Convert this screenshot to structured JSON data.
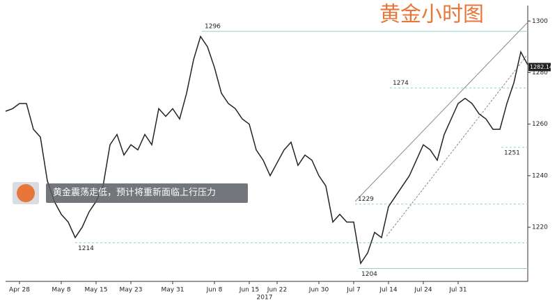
{
  "chart_data": {
    "type": "line",
    "title": "黄金小时图",
    "annotation": "黄金震荡走低，预计将重新面临上行压力",
    "x_axis_label": "2017",
    "categories": [
      null,
      null,
      "Apr 28",
      null,
      null,
      null,
      null,
      null,
      "May 8",
      null,
      null,
      null,
      null,
      "May 15",
      null,
      null,
      null,
      null,
      "May 23",
      null,
      null,
      null,
      null,
      null,
      "May 31",
      null,
      null,
      null,
      null,
      null,
      "Jun 8",
      null,
      null,
      null,
      null,
      "Jun 15",
      null,
      null,
      null,
      "Jun 22",
      null,
      null,
      null,
      null,
      null,
      "Jun 30",
      null,
      null,
      null,
      null,
      "Jul 7",
      null,
      null,
      null,
      null,
      "Jul 14",
      null,
      null,
      null,
      null,
      "Jul 24",
      null,
      null,
      null,
      null,
      "Jul 31",
      null,
      null,
      null,
      null,
      null,
      null,
      null,
      null,
      null,
      null
    ],
    "series": [
      {
        "name": "Gold",
        "color": "#222222",
        "values": [
          1265,
          1266,
          1268,
          1268,
          1258,
          1255,
          1238,
          1230,
          1225,
          1222,
          1216,
          1220,
          1226,
          1230,
          1236,
          1252,
          1256,
          1248,
          1252,
          1250,
          1256,
          1252,
          1266,
          1263,
          1266,
          1262,
          1272,
          1285,
          1294,
          1290,
          1282,
          1272,
          1268,
          1266,
          1262,
          1260,
          1250,
          1246,
          1240,
          1245,
          1250,
          1253,
          1244,
          1248,
          1246,
          1240,
          1236,
          1222,
          1225,
          1222,
          1222,
          1206,
          1210,
          1218,
          1216,
          1228,
          1232,
          1236,
          1240,
          1246,
          1252,
          1250,
          1246,
          1256,
          1262,
          1268,
          1270,
          1268,
          1264,
          1262,
          1258,
          1258,
          1268,
          1276,
          1288,
          1283
        ]
      }
    ],
    "levels": [
      1296,
      1274,
      1229,
      1214,
      1204,
      1251
    ],
    "last": 1282.14,
    "ylim": [
      1199,
      1306
    ],
    "yticks": [
      1220,
      1240,
      1260,
      1280,
      1300
    ]
  }
}
